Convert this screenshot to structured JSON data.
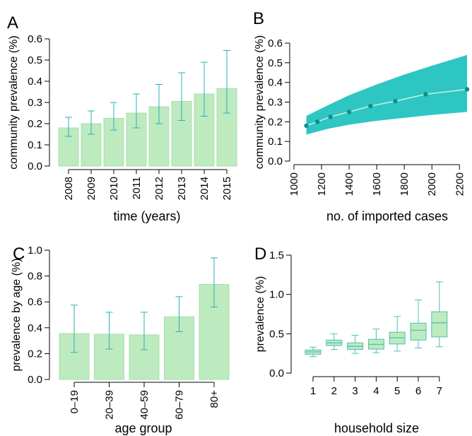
{
  "colors": {
    "bar_fill": "#bdeabf",
    "bar_stroke": "#a8dfae",
    "errorbar": "#2ab0b8",
    "band_fill": "#2ec6c2",
    "line": "#c9f0e6",
    "point": "#0f8f8a",
    "box_fill": "#bdeabf",
    "box_stroke": "#4fbfb3"
  },
  "chart_data": [
    {
      "panel": "A",
      "type": "bar",
      "xlabel": "time (years)",
      "ylabel": "community prevalence (%)",
      "ylim": [
        0,
        0.6
      ],
      "yticks": [
        "0.0",
        "0.1",
        "0.2",
        "0.3",
        "0.4",
        "0.5",
        "0.6"
      ],
      "categories": [
        "2008",
        "2009",
        "2010",
        "2011",
        "2012",
        "2013",
        "2014",
        "2015"
      ],
      "values": [
        0.18,
        0.2,
        0.225,
        0.25,
        0.28,
        0.305,
        0.34,
        0.365
      ],
      "lower": [
        0.14,
        0.15,
        0.17,
        0.18,
        0.2,
        0.215,
        0.235,
        0.25
      ],
      "upper": [
        0.23,
        0.26,
        0.3,
        0.34,
        0.385,
        0.44,
        0.49,
        0.545
      ]
    },
    {
      "panel": "B",
      "type": "line",
      "xlabel": "no. of imported cases",
      "ylabel": "community prevalence (%)",
      "xlim": [
        1000,
        2260
      ],
      "ylim": [
        0,
        0.6
      ],
      "xticks": [
        "1000",
        "1200",
        "1400",
        "1600",
        "1800",
        "2000",
        "2200"
      ],
      "yticks": [
        "0.0",
        "0.1",
        "0.2",
        "0.3",
        "0.4",
        "0.5",
        "0.6"
      ],
      "x": [
        1090,
        1170,
        1265,
        1400,
        1555,
        1735,
        1955,
        2255
      ],
      "y": [
        0.18,
        0.2,
        0.225,
        0.25,
        0.28,
        0.305,
        0.34,
        0.365
      ],
      "band_x": [
        1090,
        1250,
        1400,
        1600,
        1800,
        2000,
        2255
      ],
      "band_lower": [
        0.135,
        0.165,
        0.185,
        0.205,
        0.22,
        0.235,
        0.25
      ],
      "band_upper": [
        0.23,
        0.285,
        0.335,
        0.39,
        0.44,
        0.485,
        0.54
      ]
    },
    {
      "panel": "C",
      "type": "bar",
      "xlabel": "age group",
      "ylabel": "prevalence by age (%)",
      "ylim": [
        0,
        1.0
      ],
      "yticks": [
        "0.0",
        "0.2",
        "0.4",
        "0.6",
        "0.8",
        "1.0"
      ],
      "categories": [
        "0–19",
        "20–39",
        "40–59",
        "60–79",
        "80+"
      ],
      "values": [
        0.355,
        0.35,
        0.345,
        0.485,
        0.735
      ],
      "lower": [
        0.21,
        0.235,
        0.23,
        0.37,
        0.56
      ],
      "upper": [
        0.575,
        0.52,
        0.52,
        0.64,
        0.94
      ]
    },
    {
      "panel": "D",
      "type": "box",
      "xlabel": "household size",
      "ylabel": "prevalence (%)",
      "ylim": [
        0,
        1.5
      ],
      "yticks": [
        "0.0",
        "0.5",
        "1.0",
        "1.5"
      ],
      "categories": [
        "1",
        "2",
        "3",
        "4",
        "5",
        "6",
        "7"
      ],
      "boxes": [
        {
          "min": 0.21,
          "q1": 0.24,
          "median": 0.27,
          "q3": 0.295,
          "max": 0.33
        },
        {
          "min": 0.3,
          "q1": 0.35,
          "median": 0.385,
          "q3": 0.42,
          "max": 0.5
        },
        {
          "min": 0.25,
          "q1": 0.3,
          "median": 0.34,
          "q3": 0.385,
          "max": 0.48
        },
        {
          "min": 0.26,
          "q1": 0.305,
          "median": 0.365,
          "q3": 0.43,
          "max": 0.56
        },
        {
          "min": 0.28,
          "q1": 0.37,
          "median": 0.45,
          "q3": 0.52,
          "max": 0.72
        },
        {
          "min": 0.32,
          "q1": 0.42,
          "median": 0.545,
          "q3": 0.635,
          "max": 0.93
        },
        {
          "min": 0.335,
          "q1": 0.46,
          "median": 0.64,
          "q3": 0.78,
          "max": 1.16
        }
      ]
    }
  ],
  "panels": {
    "A": {
      "letter": "A"
    },
    "B": {
      "letter": "B"
    },
    "C": {
      "letter": "C"
    },
    "D": {
      "letter": "D"
    }
  }
}
